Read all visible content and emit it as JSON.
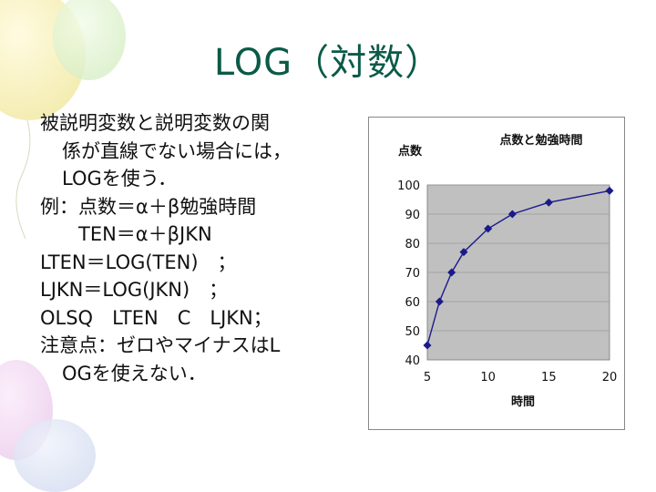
{
  "slide": {
    "title": "LOG（対数）",
    "lines": [
      "被説明変数と説明変数の関",
      "係が直線でない場合には，",
      "LOGを使う．",
      "例：点数＝α＋β勉強時間",
      "TEN＝α＋βJKN",
      "LTEN＝LOG(TEN)　；",
      "LJKN＝LOG(JKN)　；",
      "OLSQ　LTEN　C　LJKN；",
      "注意点：ゼロやマイナスはL",
      "OGを使えない．"
    ]
  },
  "chart_data": {
    "type": "line",
    "title": "点数と勉強時間",
    "ylabel": "点数",
    "xlabel": "時間",
    "x": [
      5,
      6,
      7,
      8,
      10,
      12,
      15,
      20
    ],
    "y": [
      45,
      60,
      70,
      77,
      85,
      90,
      94,
      98
    ],
    "xlim": [
      5,
      20
    ],
    "ylim": [
      40,
      100
    ],
    "xticks": [
      5,
      10,
      15,
      20
    ],
    "yticks": [
      40,
      50,
      60,
      70,
      80,
      90,
      100
    ],
    "grid": true,
    "colors": {
      "line": "#1a1a8c",
      "plot_bg": "#c0c0c0",
      "frame": "#888888"
    }
  }
}
